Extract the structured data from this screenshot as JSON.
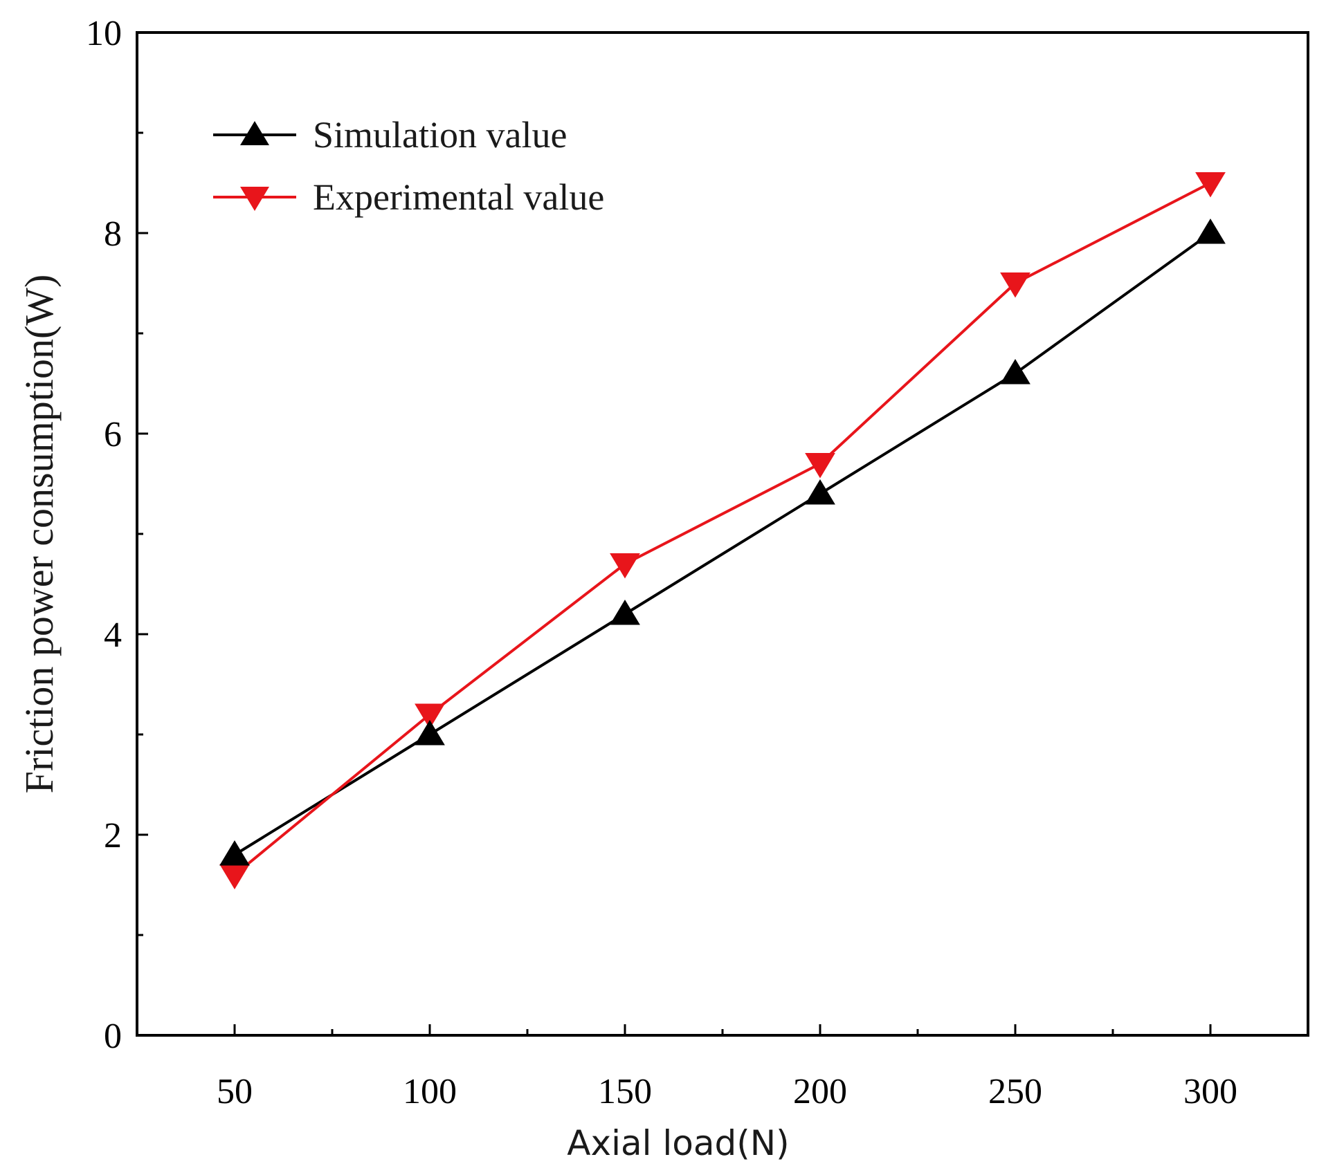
{
  "chart_data": {
    "type": "line",
    "title": "",
    "xlabel": "Axial load(N)",
    "ylabel": "Friction power consumption(W)",
    "x": [
      50,
      100,
      150,
      200,
      250,
      300
    ],
    "xlim": [
      25,
      325
    ],
    "ylim": [
      0,
      10
    ],
    "xticks": [
      50,
      100,
      150,
      200,
      250,
      300
    ],
    "yticks": [
      0,
      2,
      4,
      6,
      8,
      10
    ],
    "series": [
      {
        "name": "Simulation value",
        "color": "#000000",
        "marker": "triangle-up",
        "values": [
          1.8,
          3.0,
          4.2,
          5.4,
          6.6,
          8.0
        ]
      },
      {
        "name": "Experimental value",
        "color": "#e8151b",
        "marker": "triangle-down",
        "values": [
          1.6,
          3.2,
          4.7,
          5.7,
          7.5,
          8.5
        ]
      }
    ],
    "legend": {
      "position": "top-left"
    },
    "grid": false
  }
}
